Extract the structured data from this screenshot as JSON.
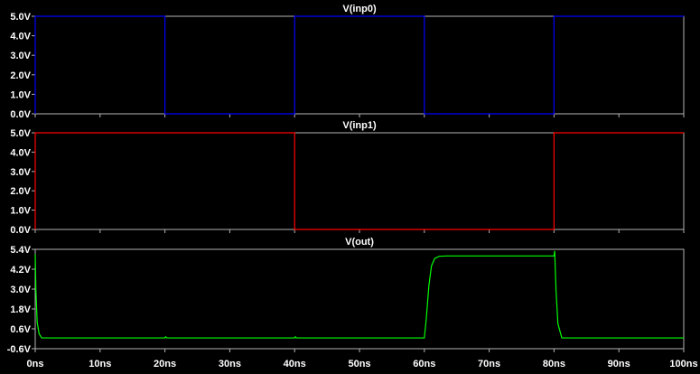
{
  "window": {
    "background": "#000000",
    "frame_color": "#b4b4b4"
  },
  "chart_data": [
    {
      "type": "line",
      "title": "V(inp0)",
      "color": "#0000ff",
      "xlabel": "",
      "ylabel": "",
      "xlim": [
        0,
        100
      ],
      "ylim": [
        0,
        5
      ],
      "yticks": [
        "0.0V",
        "1.0V",
        "2.0V",
        "3.0V",
        "4.0V",
        "5.0V"
      ],
      "ytick_values": [
        0,
        1,
        2,
        3,
        4,
        5
      ],
      "series": [
        {
          "x": [
            0,
            0,
            20,
            20,
            40,
            40,
            60,
            60,
            80,
            80,
            100
          ],
          "values": [
            0,
            5,
            5,
            0,
            0,
            5,
            5,
            0,
            0,
            5,
            5
          ]
        }
      ]
    },
    {
      "type": "line",
      "title": "V(inp1)",
      "color": "#ff0000",
      "xlabel": "",
      "ylabel": "",
      "xlim": [
        0,
        100
      ],
      "ylim": [
        0,
        5
      ],
      "yticks": [
        "0.0V",
        "1.0V",
        "2.0V",
        "3.0V",
        "4.0V",
        "5.0V"
      ],
      "ytick_values": [
        0,
        1,
        2,
        3,
        4,
        5
      ],
      "series": [
        {
          "x": [
            0,
            0,
            40,
            40,
            80,
            80,
            100
          ],
          "values": [
            0,
            5,
            5,
            0,
            0,
            5,
            5
          ]
        }
      ]
    },
    {
      "type": "line",
      "title": "V(out)",
      "color": "#00ff00",
      "xlabel": "",
      "ylabel": "",
      "xlim": [
        0,
        100
      ],
      "ylim": [
        -0.6,
        5.4
      ],
      "yticks": [
        "-0.6V",
        "0.6V",
        "1.8V",
        "3.0V",
        "4.2V",
        "5.4V"
      ],
      "ytick_values": [
        -0.6,
        0.6,
        1.8,
        3.0,
        4.2,
        5.4
      ],
      "xticks": [
        "0ns",
        "10ns",
        "20ns",
        "30ns",
        "40ns",
        "50ns",
        "60ns",
        "70ns",
        "80ns",
        "90ns",
        "100ns"
      ],
      "xtick_values": [
        0,
        10,
        20,
        30,
        40,
        50,
        60,
        70,
        80,
        90,
        100
      ],
      "series": [
        {
          "x": [
            0,
            0.1,
            0.3,
            0.6,
            1.0,
            20,
            20.1,
            20.3,
            40,
            40.1,
            40.3,
            60,
            60.3,
            60.7,
            61.1,
            61.6,
            62.3,
            63.5,
            80,
            80.1,
            80.3,
            80.6,
            81.2,
            100
          ],
          "values": [
            5.1,
            3.0,
            1.0,
            0.3,
            0.05,
            0.05,
            0.12,
            0.05,
            0.05,
            0.12,
            0.05,
            0.05,
            1.2,
            3.2,
            4.4,
            4.85,
            4.98,
            5.0,
            5.0,
            5.3,
            3.0,
            0.9,
            0.05,
            0.05
          ]
        }
      ]
    }
  ]
}
